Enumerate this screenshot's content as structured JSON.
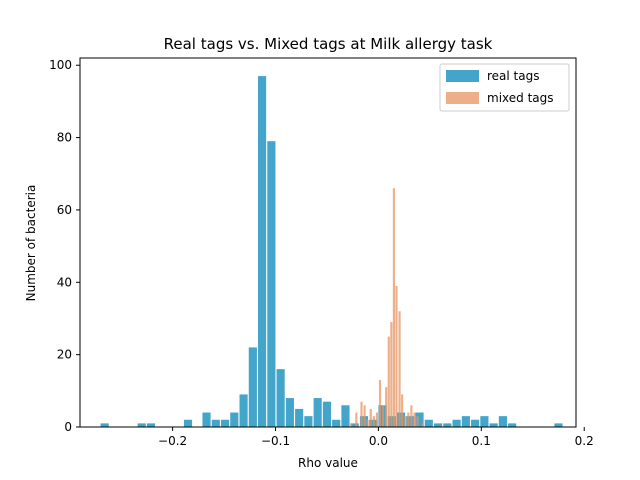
{
  "chart_data": {
    "type": "bar",
    "title": "Real tags vs. Mixed tags at Milk allergy task",
    "xlabel": "Rho value",
    "ylabel": "Number of bacteria",
    "xlim": [
      -0.29,
      0.192
    ],
    "ylim": [
      0,
      102
    ],
    "x_ticks": [
      -0.2,
      -0.1,
      0.0,
      0.1,
      0.2
    ],
    "x_tick_labels": [
      "−0.2",
      "−0.1",
      "0.0",
      "0.1",
      "0.2"
    ],
    "y_ticks": [
      0,
      20,
      40,
      60,
      80,
      100
    ],
    "y_tick_labels": [
      "0",
      "20",
      "40",
      "60",
      "80",
      "100"
    ],
    "grid": false,
    "legend_position": "top-right",
    "series": [
      {
        "name": "real tags",
        "color": "#44a5cb",
        "opacity": 1,
        "bin_width": 0.009,
        "bins": [
          [
            -0.27,
            1
          ],
          [
            -0.234,
            1
          ],
          [
            -0.225,
            1
          ],
          [
            -0.189,
            2
          ],
          [
            -0.171,
            4
          ],
          [
            -0.162,
            2
          ],
          [
            -0.153,
            2
          ],
          [
            -0.144,
            4
          ],
          [
            -0.135,
            9
          ],
          [
            -0.126,
            22
          ],
          [
            -0.117,
            97
          ],
          [
            -0.108,
            79
          ],
          [
            -0.099,
            16
          ],
          [
            -0.09,
            8
          ],
          [
            -0.081,
            5
          ],
          [
            -0.072,
            3
          ],
          [
            -0.063,
            8
          ],
          [
            -0.054,
            7
          ],
          [
            -0.045,
            2
          ],
          [
            -0.036,
            6
          ],
          [
            -0.027,
            1
          ],
          [
            -0.018,
            3
          ],
          [
            -0.009,
            2
          ],
          [
            0.0,
            6
          ],
          [
            0.009,
            3
          ],
          [
            0.018,
            4
          ],
          [
            0.027,
            3
          ],
          [
            0.036,
            4
          ],
          [
            0.045,
            2
          ],
          [
            0.054,
            1
          ],
          [
            0.063,
            1
          ],
          [
            0.072,
            2
          ],
          [
            0.081,
            3
          ],
          [
            0.09,
            2
          ],
          [
            0.099,
            3
          ],
          [
            0.108,
            1
          ],
          [
            0.117,
            3
          ],
          [
            0.126,
            1
          ],
          [
            0.171,
            1
          ]
        ]
      },
      {
        "name": "mixed tags",
        "color": "#e69462",
        "opacity": 0.75,
        "bin_width": 0.0024,
        "bins": [
          [
            -0.0275,
            1
          ],
          [
            -0.0225,
            4
          ],
          [
            -0.0175,
            7
          ],
          [
            -0.0145,
            6
          ],
          [
            -0.0115,
            2
          ],
          [
            -0.0085,
            5
          ],
          [
            -0.0055,
            3
          ],
          [
            -0.0025,
            4
          ],
          [
            0.0005,
            13
          ],
          [
            0.0035,
            6
          ],
          [
            0.0065,
            11
          ],
          [
            0.009,
            25
          ],
          [
            0.0115,
            29
          ],
          [
            0.014,
            66
          ],
          [
            0.0165,
            39
          ],
          [
            0.0195,
            32
          ],
          [
            0.022,
            9
          ],
          [
            0.025,
            3
          ],
          [
            0.028,
            4
          ],
          [
            0.031,
            6
          ],
          [
            0.034,
            4
          ],
          [
            0.037,
            3
          ],
          [
            0.042,
            1
          ]
        ]
      }
    ]
  }
}
